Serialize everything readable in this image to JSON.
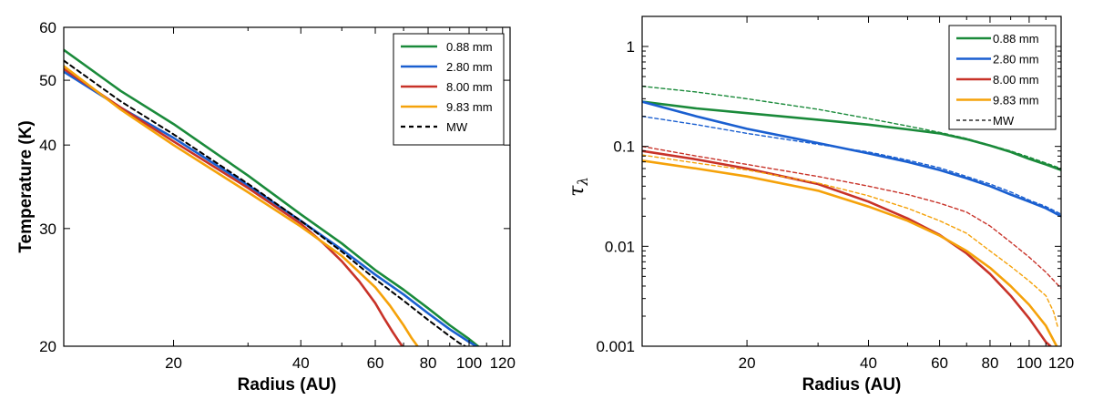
{
  "chart_data": [
    {
      "type": "line",
      "title": "",
      "xlabel": "Radius  (AU)",
      "ylabel": "Temperature (K)",
      "xscale": "log",
      "yscale": "log",
      "xlim": [
        11,
        125
      ],
      "ylim": [
        20,
        60
      ],
      "xticks": [
        {
          "v": 20,
          "label": "20"
        },
        {
          "v": 40,
          "label": "40"
        },
        {
          "v": 60,
          "label": "60"
        },
        {
          "v": 80,
          "label": "80"
        },
        {
          "v": 100,
          "label": "100"
        },
        {
          "v": 120,
          "label": "120"
        }
      ],
      "yticks": [
        {
          "v": 20,
          "label": "20"
        },
        {
          "v": 30,
          "label": "30"
        },
        {
          "v": 40,
          "label": "40"
        },
        {
          "v": 50,
          "label": "50"
        },
        {
          "v": 60,
          "label": "60"
        }
      ],
      "legend_position": "top-right",
      "series": [
        {
          "name": "0.88 mm",
          "color": "#1a8a3a",
          "style": "solid",
          "x": [
            11,
            15,
            20,
            30,
            40,
            50,
            60,
            70,
            80,
            90,
            100,
            105
          ],
          "y": [
            55.5,
            48.2,
            43.0,
            36.0,
            31.5,
            28.5,
            26.0,
            24.3,
            22.8,
            21.5,
            20.5,
            20.0
          ]
        },
        {
          "name": "2.80 mm",
          "color": "#1a5fd0",
          "style": "solid",
          "x": [
            11,
            15,
            20,
            30,
            40,
            50,
            60,
            70,
            80,
            90,
            100,
            104
          ],
          "y": [
            51.5,
            45.5,
            41.0,
            34.8,
            30.8,
            27.9,
            25.6,
            23.9,
            22.4,
            21.2,
            20.3,
            20.0
          ]
        },
        {
          "name": "8.00 mm",
          "color": "#c83228",
          "style": "solid",
          "x": [
            11,
            15,
            20,
            30,
            40,
            45,
            50,
            55,
            60,
            63,
            66,
            68,
            69.5
          ],
          "y": [
            52.0,
            45.5,
            40.5,
            34.5,
            30.5,
            28.6,
            26.8,
            25.0,
            23.2,
            22.0,
            21.0,
            20.4,
            20.0
          ]
        },
        {
          "name": "9.83 mm",
          "color": "#f5a20a",
          "style": "solid",
          "x": [
            11,
            15,
            20,
            30,
            40,
            50,
            60,
            65,
            70,
            73,
            75.5
          ],
          "y": [
            52.5,
            45.2,
            40.0,
            34.0,
            30.2,
            27.3,
            24.5,
            23.0,
            21.5,
            20.6,
            20.0
          ]
        },
        {
          "name": "MW",
          "color": "#000000",
          "style": "dashed",
          "x": [
            11,
            15,
            20,
            30,
            40,
            50,
            60,
            70,
            80,
            90,
            95,
            98
          ],
          "y": [
            53.5,
            46.5,
            41.5,
            35.0,
            30.8,
            27.7,
            25.2,
            23.4,
            21.9,
            20.7,
            20.2,
            20.0
          ]
        }
      ]
    },
    {
      "type": "line",
      "title": "",
      "xlabel": "Radius  (AU)",
      "ylabel": "τλ",
      "xscale": "log",
      "yscale": "log",
      "xlim": [
        11,
        120
      ],
      "ylim": [
        0.001,
        2
      ],
      "xticks": [
        {
          "v": 20,
          "label": "20"
        },
        {
          "v": 40,
          "label": "40"
        },
        {
          "v": 60,
          "label": "60"
        },
        {
          "v": 80,
          "label": "80"
        },
        {
          "v": 100,
          "label": "100"
        },
        {
          "v": 120,
          "label": "120"
        }
      ],
      "yticks": [
        {
          "v": 1,
          "label": "1"
        },
        {
          "v": 0.1,
          "label": "0.1"
        },
        {
          "v": 0.01,
          "label": "0.01"
        },
        {
          "v": 0.001,
          "label": "0.001"
        }
      ],
      "legend_position": "top-right",
      "series": [
        {
          "name": "0.88 mm",
          "color": "#1a8a3a",
          "style": "solid",
          "x": [
            11,
            15,
            20,
            30,
            40,
            50,
            60,
            70,
            80,
            90,
            100,
            110,
            120
          ],
          "y": [
            0.28,
            0.24,
            0.215,
            0.185,
            0.165,
            0.148,
            0.135,
            0.118,
            0.102,
            0.088,
            0.075,
            0.066,
            0.058
          ]
        },
        {
          "name": "0.88 mm MW",
          "color": "#1a8a3a",
          "style": "dashed",
          "x": [
            11,
            15,
            20,
            30,
            40,
            50,
            60,
            70,
            80,
            90,
            100,
            110,
            120
          ],
          "y": [
            0.4,
            0.35,
            0.3,
            0.235,
            0.19,
            0.16,
            0.138,
            0.12,
            0.103,
            0.09,
            0.078,
            0.068,
            0.06
          ]
        },
        {
          "name": "2.80 mm",
          "color": "#1a5fd0",
          "style": "solid",
          "x": [
            11,
            15,
            20,
            30,
            40,
            50,
            60,
            70,
            80,
            90,
            100,
            110,
            120
          ],
          "y": [
            0.28,
            0.2,
            0.15,
            0.108,
            0.085,
            0.07,
            0.058,
            0.048,
            0.04,
            0.033,
            0.028,
            0.024,
            0.02
          ]
        },
        {
          "name": "2.80 mm MW",
          "color": "#1a5fd0",
          "style": "dashed",
          "x": [
            11,
            15,
            20,
            30,
            40,
            50,
            60,
            70,
            80,
            90,
            100,
            110,
            120
          ],
          "y": [
            0.2,
            0.165,
            0.135,
            0.105,
            0.088,
            0.073,
            0.061,
            0.05,
            0.042,
            0.035,
            0.029,
            0.025,
            0.021
          ]
        },
        {
          "name": "8.00 mm",
          "color": "#c83228",
          "style": "solid",
          "x": [
            11,
            15,
            20,
            30,
            40,
            50,
            60,
            70,
            80,
            90,
            100,
            110,
            113
          ],
          "y": [
            0.09,
            0.074,
            0.06,
            0.042,
            0.028,
            0.019,
            0.013,
            0.0085,
            0.0053,
            0.0032,
            0.0019,
            0.0011,
            0.001
          ]
        },
        {
          "name": "8.00 mm MW",
          "color": "#c83228",
          "style": "dashed",
          "x": [
            11,
            15,
            20,
            30,
            40,
            50,
            60,
            70,
            80,
            90,
            100,
            110,
            120
          ],
          "y": [
            0.1,
            0.08,
            0.066,
            0.05,
            0.04,
            0.033,
            0.027,
            0.022,
            0.016,
            0.011,
            0.0078,
            0.0055,
            0.0038
          ]
        },
        {
          "name": "9.83 mm",
          "color": "#f5a20a",
          "style": "solid",
          "x": [
            11,
            15,
            20,
            30,
            40,
            50,
            60,
            70,
            80,
            90,
            100,
            110,
            117
          ],
          "y": [
            0.072,
            0.06,
            0.05,
            0.036,
            0.025,
            0.018,
            0.0128,
            0.009,
            0.0061,
            0.004,
            0.0026,
            0.0016,
            0.001
          ]
        },
        {
          "name": "9.83 mm MW",
          "color": "#f5a20a",
          "style": "dashed",
          "x": [
            11,
            15,
            20,
            30,
            40,
            50,
            60,
            70,
            80,
            90,
            100,
            110,
            115,
            118
          ],
          "y": [
            0.082,
            0.068,
            0.058,
            0.043,
            0.032,
            0.024,
            0.018,
            0.0135,
            0.009,
            0.0063,
            0.0045,
            0.0032,
            0.0022,
            0.0015
          ]
        }
      ],
      "legend": [
        {
          "label": "0.88 mm",
          "color": "#1a8a3a",
          "style": "solid"
        },
        {
          "label": "2.80 mm",
          "color": "#1a5fd0",
          "style": "solid"
        },
        {
          "label": "8.00 mm",
          "color": "#c83228",
          "style": "solid"
        },
        {
          "label": "9.83 mm",
          "color": "#f5a20a",
          "style": "solid"
        },
        {
          "label": "MW",
          "color": "#000000",
          "style": "dashed"
        }
      ]
    }
  ]
}
